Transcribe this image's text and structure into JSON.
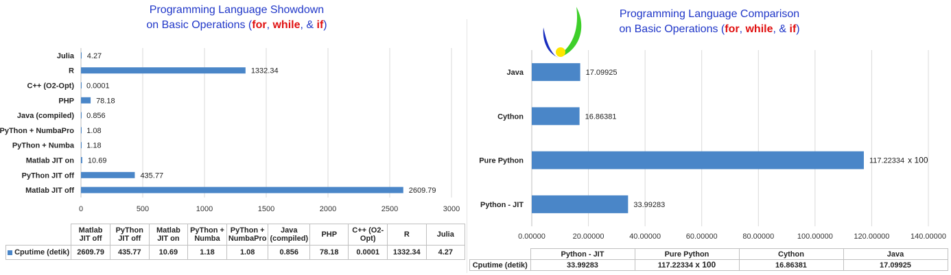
{
  "left": {
    "title_line1": "Programming Language Showdown",
    "title_line2_pre": "on Basic Operations (",
    "title_for": "for",
    "title_sep1": ", ",
    "title_while": "while",
    "title_sep2": ", & ",
    "title_if": "if",
    "title_close": ")",
    "series_name": "Cputime (detik)",
    "table_headers": [
      "Matlab JIT off",
      "PyThon JIT off",
      "Matlab JIT on",
      "PyThon + Numba",
      "PyThon + NumbaPro",
      "Java (compiled)",
      "PHP",
      "C++ (O2-Opt)",
      "R",
      "Julia"
    ],
    "table_values": [
      "2609.79",
      "435.77",
      "10.69",
      "1.18",
      "1.08",
      "0.856",
      "78.18",
      "0.0001",
      "1332.34",
      "4.27"
    ]
  },
  "right": {
    "title_line1": "Programming Language Comparison",
    "title_line2_pre": "on Basic Operations (",
    "title_for": "for",
    "title_sep1": ", ",
    "title_while": "while",
    "title_sep2": ", & ",
    "title_if": "if",
    "title_close": ")",
    "series_name": "Cputime (detik)",
    "scale_suffix": "x 100",
    "table_headers": [
      "Python - JIT",
      "Pure Python",
      "Cython",
      "Java"
    ],
    "table_values": [
      "33.99283",
      "117.22334",
      "16.86381",
      "17.09925"
    ]
  },
  "colors": {
    "bar": "#4a86c8",
    "title": "#1f36c8",
    "emphasis": "#e01010",
    "grid": "#d9d9d9"
  },
  "chart_data": [
    {
      "type": "bar",
      "orientation": "horizontal",
      "title": "Programming Language Showdown on Basic Operations (for, while, & if)",
      "categories": [
        "Matlab JIT off",
        "PyThon JIT off",
        "Matlab JIT on",
        "PyThon + Numba",
        "PyThon + NumbaPro",
        "Java (compiled)",
        "PHP",
        "C++ (O2-Opt)",
        "R",
        "Julia"
      ],
      "series": [
        {
          "name": "Cputime (detik)",
          "values": [
            2609.79,
            435.77,
            10.69,
            1.18,
            1.08,
            0.856,
            78.18,
            0.0001,
            1332.34,
            4.27
          ]
        }
      ],
      "value_labels": [
        "2609.79",
        "435.77",
        "10.69",
        "1.18",
        "1.08",
        "0.856",
        "78.18",
        "0.0001",
        "1332.34",
        "4.27"
      ],
      "xlim": [
        0,
        3000
      ],
      "xticks": [
        "0",
        "500",
        "1000",
        "1500",
        "2000",
        "2500",
        "3000"
      ],
      "grid": true,
      "legend": "data-table"
    },
    {
      "type": "bar",
      "orientation": "horizontal",
      "title": "Programming Language Comparison on Basic Operations (for, while, & if)",
      "categories": [
        "Python - JIT",
        "Pure Python",
        "Cython",
        "Java"
      ],
      "series": [
        {
          "name": "Cputime (detik)",
          "values": [
            33.99283,
            117.22334,
            16.86381,
            17.09925
          ]
        }
      ],
      "value_labels": [
        "33.99283",
        "117.22334",
        "16.86381",
        "17.09925"
      ],
      "xlim": [
        0,
        140
      ],
      "xticks": [
        "0.00000",
        "20.00000",
        "40.00000",
        "60.00000",
        "80.00000",
        "100.00000",
        "120.00000",
        "140.00000"
      ],
      "grid": true,
      "legend": "data-table"
    }
  ]
}
